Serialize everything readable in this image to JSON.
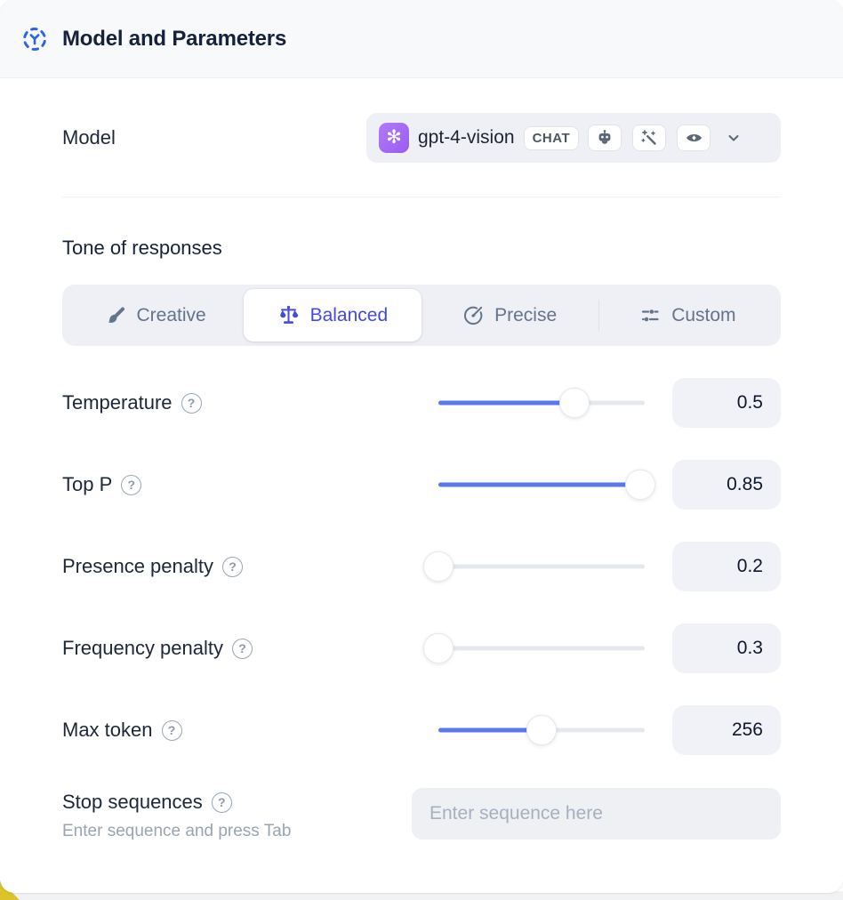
{
  "header": {
    "title": "Model and Parameters"
  },
  "model_row": {
    "label": "Model",
    "selected_model": "gpt-4-vision",
    "type_badge": "CHAT",
    "capability_icons": [
      "robot-icon",
      "magic-wand-icon",
      "vision-eye-icon"
    ]
  },
  "tone": {
    "heading": "Tone of responses",
    "tabs": [
      {
        "label": "Creative",
        "icon": "paintbrush-icon",
        "active": false
      },
      {
        "label": "Balanced",
        "icon": "balance-scale-icon",
        "active": true
      },
      {
        "label": "Precise",
        "icon": "target-arrow-icon",
        "active": false
      },
      {
        "label": "Custom",
        "icon": "sliders-icon",
        "active": false
      }
    ]
  },
  "parameters": [
    {
      "label": "Temperature",
      "value": "0.5",
      "slider_percent": 66
    },
    {
      "label": "Top P",
      "value": "0.85",
      "slider_percent": 98
    },
    {
      "label": "Presence penalty",
      "value": "0.2",
      "slider_percent": 0
    },
    {
      "label": "Frequency penalty",
      "value": "0.3",
      "slider_percent": 0
    },
    {
      "label": "Max token",
      "value": "256",
      "slider_percent": 50
    }
  ],
  "stop_sequences": {
    "label": "Stop sequences",
    "hint": "Enter sequence and press Tab",
    "placeholder": "Enter sequence here"
  },
  "icons": {
    "help": "?",
    "openai_glyph": "✻"
  },
  "colors": {
    "accent_indigo": "#4449e2",
    "slider_blue": "#5b78ee",
    "avatar_purple": "#9a5cf0",
    "header_bg": "#f8f9fb",
    "control_bg": "#eef0f5",
    "corner_yellow": "#dcc32a"
  }
}
